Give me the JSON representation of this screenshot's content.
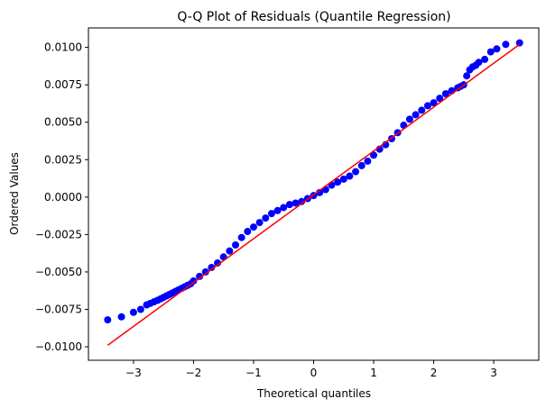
{
  "chart_data": {
    "type": "scatter",
    "title": "Q-Q Plot of Residuals (Quantile Regression)",
    "xlabel": "Theoretical quantiles",
    "ylabel": "Ordered Values",
    "xlim": [
      -3.75,
      3.75
    ],
    "ylim": [
      -0.0109,
      0.0113
    ],
    "grid": false,
    "x_ticks": [
      {
        "value": -3,
        "label": "−3"
      },
      {
        "value": -2,
        "label": "−2"
      },
      {
        "value": -1,
        "label": "−1"
      },
      {
        "value": 0,
        "label": "0"
      },
      {
        "value": 1,
        "label": "1"
      },
      {
        "value": 2,
        "label": "2"
      },
      {
        "value": 3,
        "label": "3"
      }
    ],
    "y_ticks": [
      {
        "value": -0.01,
        "label": "−0.0100"
      },
      {
        "value": -0.0075,
        "label": "−0.0075"
      },
      {
        "value": -0.005,
        "label": "−0.0050"
      },
      {
        "value": -0.0025,
        "label": "−0.0025"
      },
      {
        "value": 0.0,
        "label": "0.0000"
      },
      {
        "value": 0.0025,
        "label": "0.0025"
      },
      {
        "value": 0.005,
        "label": "0.0050"
      },
      {
        "value": 0.0075,
        "label": "0.0075"
      },
      {
        "value": 0.01,
        "label": "0.0100"
      }
    ],
    "series": [
      {
        "kind": "points",
        "color": "#0000ff",
        "x": [
          -3.43,
          -3.2,
          -3.0,
          -2.88,
          -2.78,
          -2.72,
          -2.66,
          -2.6,
          -2.55,
          -2.5,
          -2.45,
          -2.4,
          -2.35,
          -2.3,
          -2.25,
          -2.2,
          -2.15,
          -2.1,
          -2.05,
          -2.0,
          -1.9,
          -1.8,
          -1.7,
          -1.6,
          -1.5,
          -1.4,
          -1.3,
          -1.2,
          -1.1,
          -1.0,
          -0.9,
          -0.8,
          -0.7,
          -0.6,
          -0.5,
          -0.4,
          -0.3,
          -0.2,
          -0.1,
          0.0,
          0.1,
          0.2,
          0.3,
          0.4,
          0.5,
          0.6,
          0.7,
          0.8,
          0.9,
          1.0,
          1.1,
          1.2,
          1.3,
          1.4,
          1.5,
          1.6,
          1.7,
          1.8,
          1.9,
          2.0,
          2.1,
          2.2,
          2.3,
          2.4,
          2.45,
          2.5,
          2.55,
          2.6,
          2.65,
          2.7,
          2.75,
          2.85,
          2.95,
          3.05,
          3.2,
          3.43
        ],
        "y": [
          -0.0082,
          -0.008,
          -0.0077,
          -0.0075,
          -0.0072,
          -0.0071,
          -0.007,
          -0.0069,
          -0.0068,
          -0.0067,
          -0.0066,
          -0.0065,
          -0.0064,
          -0.0063,
          -0.0062,
          -0.0061,
          -0.006,
          -0.0059,
          -0.0058,
          -0.0056,
          -0.0053,
          -0.005,
          -0.0047,
          -0.0044,
          -0.004,
          -0.0036,
          -0.0032,
          -0.0027,
          -0.0023,
          -0.002,
          -0.0017,
          -0.0014,
          -0.0011,
          -0.0009,
          -0.0007,
          -0.0005,
          -0.0004,
          -0.0003,
          -0.0001,
          0.0001,
          0.0003,
          0.0005,
          0.0008,
          0.001,
          0.0012,
          0.0014,
          0.0017,
          0.0021,
          0.0024,
          0.0028,
          0.0032,
          0.0035,
          0.0039,
          0.0043,
          0.0048,
          0.0052,
          0.0055,
          0.0058,
          0.0061,
          0.0063,
          0.0066,
          0.0069,
          0.0071,
          0.0073,
          0.0074,
          0.0075,
          0.0081,
          0.0085,
          0.0087,
          0.0088,
          0.009,
          0.0092,
          0.0097,
          0.0099,
          0.0102,
          0.0103
        ]
      },
      {
        "kind": "reference-line",
        "color": "#ff0000",
        "x": [
          -3.43,
          3.43
        ],
        "y": [
          -0.0099,
          0.0102
        ]
      }
    ]
  }
}
